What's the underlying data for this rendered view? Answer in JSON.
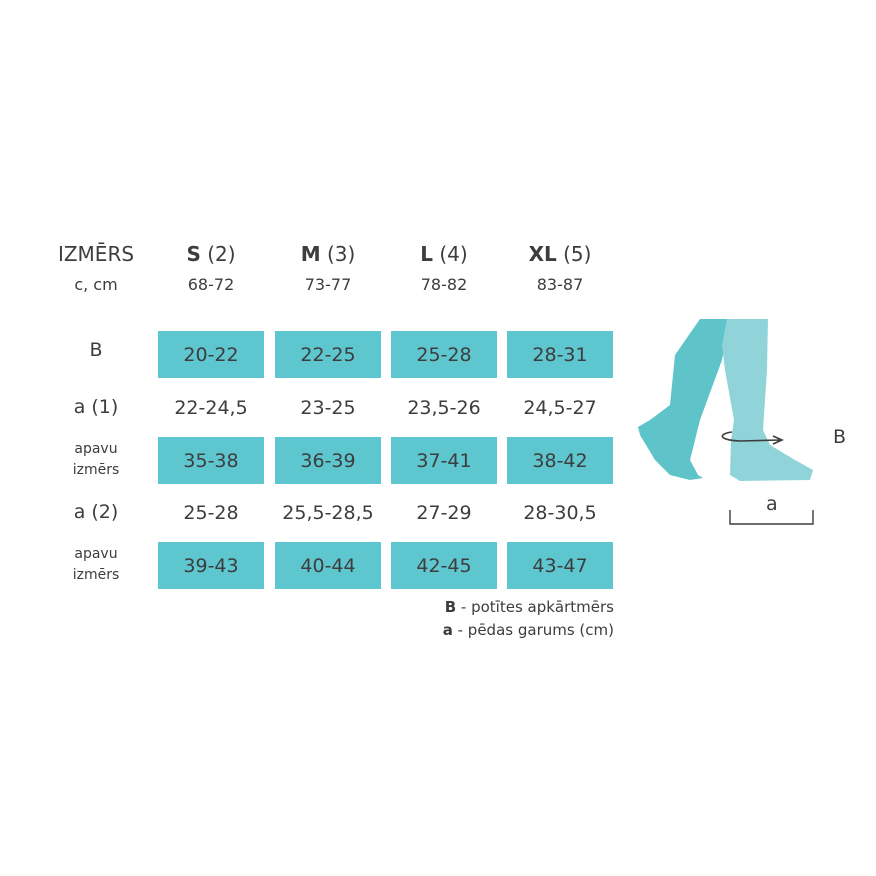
{
  "header": {
    "label": "IZMĒRS",
    "sublabel": "c, cm",
    "sizes": [
      {
        "size": "S",
        "num": "(2)",
        "range": "68-72"
      },
      {
        "size": "M",
        "num": "(3)",
        "range": "73-77"
      },
      {
        "size": "L",
        "num": "(4)",
        "range": "78-82"
      },
      {
        "size": "XL",
        "num": "(5)",
        "range": "83-87"
      }
    ]
  },
  "rows": [
    {
      "label": "B",
      "values": [
        "20-22",
        "22-25",
        "25-28",
        "28-31"
      ],
      "highlight": true
    },
    {
      "label": "a (1)",
      "values": [
        "22-24,5",
        "23-25",
        "23,5-26",
        "24,5-27"
      ],
      "highlight": false
    },
    {
      "label": "apavu izmērs",
      "values": [
        "35-38",
        "36-39",
        "37-41",
        "38-42"
      ],
      "highlight": true
    },
    {
      "label": "a (2)",
      "values": [
        "25-28",
        "25,5-28,5",
        "27-29",
        "28-30,5"
      ],
      "highlight": false
    },
    {
      "label": "apavu izmērs",
      "values": [
        "39-43",
        "40-44",
        "42-45",
        "43-47"
      ],
      "highlight": true
    }
  ],
  "legend": [
    {
      "key": "B",
      "text": " - potītes apkārtmērs"
    },
    {
      "key": "a",
      "text": " - pēdas garums (cm)"
    }
  ],
  "illustration": {
    "b_label": "B",
    "a_label": "a"
  },
  "colors": {
    "highlight": "#5ec6cf",
    "leg_dark": "#5ec4c9",
    "leg_light": "#90d4d9",
    "text": "#3d3d3d"
  }
}
